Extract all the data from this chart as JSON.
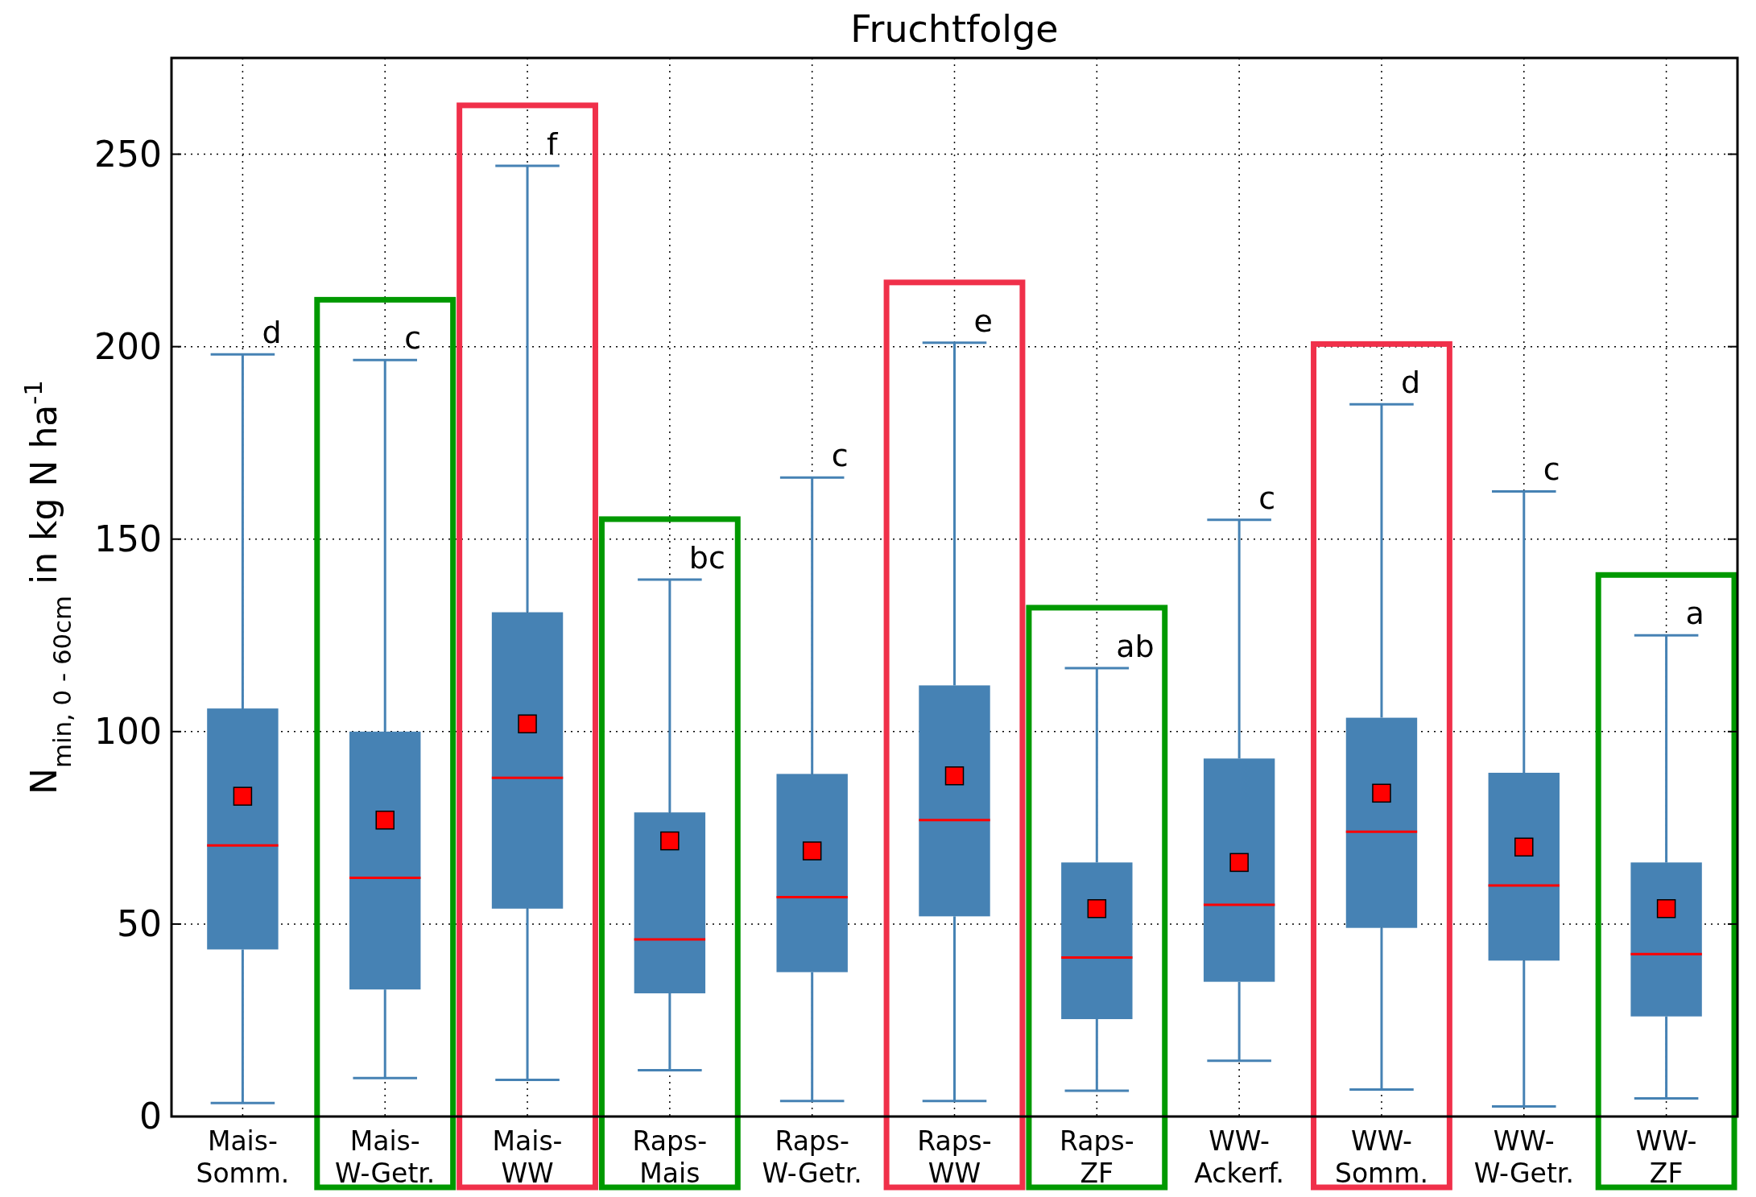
{
  "chart_data": {
    "type": "box",
    "title": "Fruchtfolge",
    "ylabel": "N$_{min, 0 - 60cm}$ in kg N ha$^{-1}$",
    "categories": [
      "Mais-Somm.",
      "Mais-W-Getr.",
      "Mais-WW",
      "Raps-Mais",
      "Raps-W-Getr.",
      "Raps-WW",
      "Raps-ZF",
      "WW-Ackerf.",
      "WW-Somm.",
      "WW-W-Getr.",
      "WW-ZF"
    ],
    "boxes": [
      {
        "low": 3.5,
        "q1": 43.4,
        "median": 70.4,
        "q3": 106,
        "high": 198,
        "mean": 83.2
      },
      {
        "low": 10,
        "q1": 33,
        "median": 62,
        "q3": 100,
        "high": 196.5,
        "mean": 77
      },
      {
        "low": 9.5,
        "q1": 54,
        "median": 88,
        "q3": 131,
        "high": 247,
        "mean": 102
      },
      {
        "low": 12,
        "q1": 32,
        "median": 46,
        "q3": 79,
        "high": 139.5,
        "mean": 71.6
      },
      {
        "low": 4,
        "q1": 37.5,
        "median": 57,
        "q3": 89,
        "high": 166,
        "mean": 69
      },
      {
        "low": 4,
        "q1": 52,
        "median": 77,
        "q3": 112,
        "high": 201,
        "mean": 88.5
      },
      {
        "low": 6.7,
        "q1": 25.3,
        "median": 41.3,
        "q3": 66,
        "high": 116.5,
        "mean": 54
      },
      {
        "low": 14.5,
        "q1": 35,
        "median": 55,
        "q3": 93,
        "high": 155,
        "mean": 66
      },
      {
        "low": 7,
        "q1": 49,
        "median": 74,
        "q3": 103.6,
        "high": 185,
        "mean": 84
      },
      {
        "low": 2.6,
        "q1": 40.5,
        "median": 60,
        "q3": 89.3,
        "high": 162.4,
        "mean": 70
      },
      {
        "low": 4.7,
        "q1": 26,
        "median": 42.2,
        "q3": 66,
        "high": 125,
        "mean": 54
      }
    ],
    "color": "#4682b4",
    "ylim": [
      0,
      275
    ],
    "yticks": [
      0,
      50,
      100,
      150,
      200,
      250
    ],
    "grid": true,
    "marker": "square",
    "annotations": [
      "d",
      "c",
      "f",
      "bc",
      "c",
      "e",
      "ab",
      "c",
      "d",
      "c",
      "a"
    ]
  }
}
